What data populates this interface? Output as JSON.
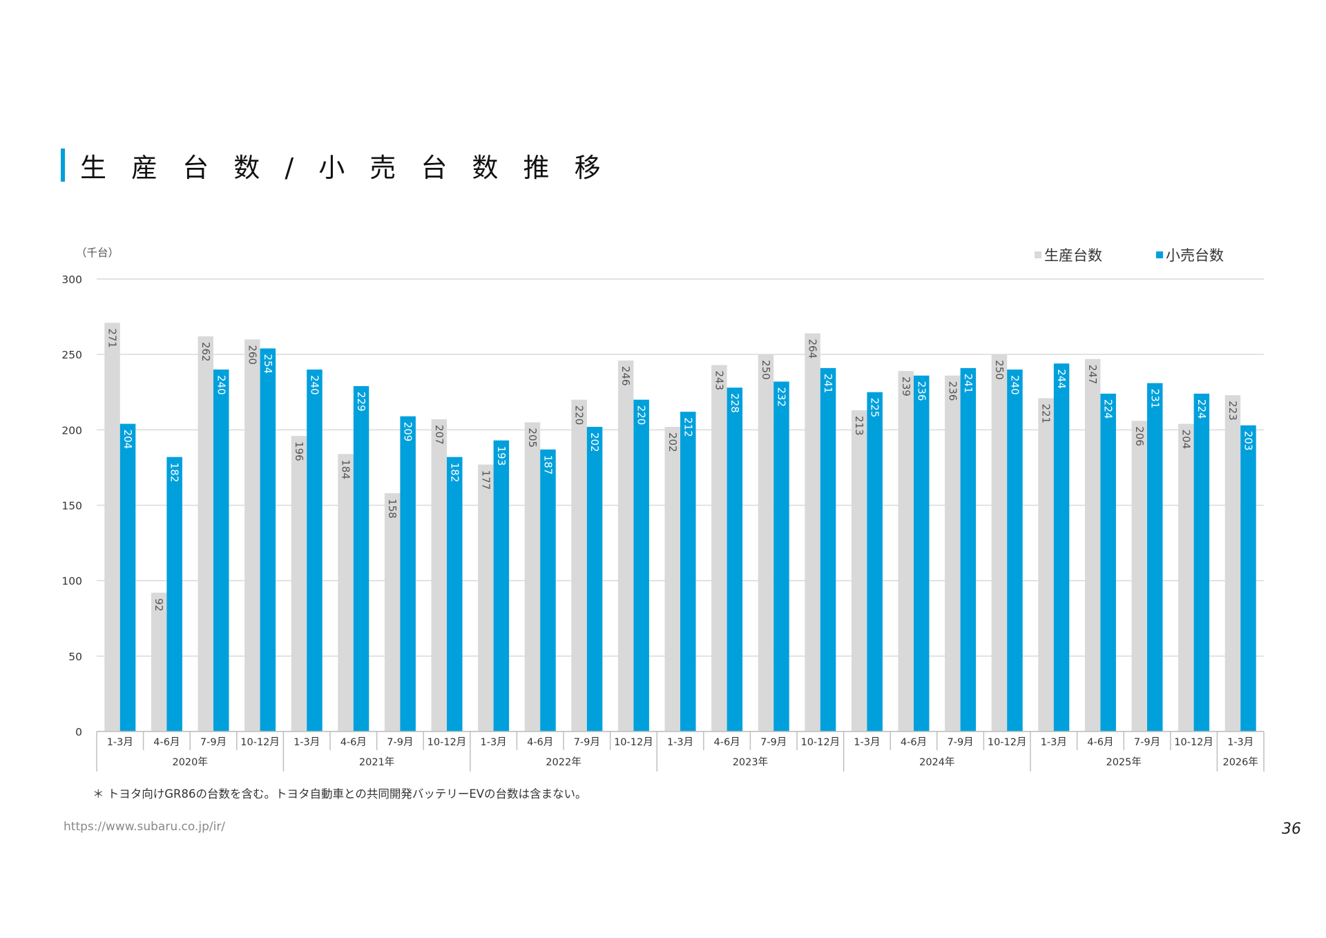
{
  "page": {
    "title": "生 産 台 数 / 小 売 台 数  推 移",
    "footnote": "＊ トヨタ向けGR86の台数を含む。トヨタ自動車との共同開発バッテリーEVの台数は含まない。",
    "url": "https://www.subaru.co.jp/ir/",
    "page_number": "36"
  },
  "colors": {
    "accent": "#009fdb",
    "production": "#d9d9d9",
    "retail": "#00a0dc",
    "grid": "#d9d9d9"
  },
  "chart_data": {
    "type": "bar",
    "unit_label": "（千台）",
    "ylim": [
      0,
      300
    ],
    "yticks": [
      0,
      50,
      100,
      150,
      200,
      250,
      300
    ],
    "grid": true,
    "legend_position": "top-right",
    "years": [
      {
        "label": "2020年",
        "count": 4
      },
      {
        "label": "2021年",
        "count": 4
      },
      {
        "label": "2022年",
        "count": 4
      },
      {
        "label": "2023年",
        "count": 4
      },
      {
        "label": "2024年",
        "count": 4
      },
      {
        "label": "2025年",
        "count": 4
      },
      {
        "label": "2026年",
        "count": 1
      }
    ],
    "categories": [
      "1-3月",
      "4-6月",
      "7-9月",
      "10-12月",
      "1-3月",
      "4-6月",
      "7-9月",
      "10-12月",
      "1-3月",
      "4-6月",
      "7-9月",
      "10-12月",
      "1-3月",
      "4-6月",
      "7-9月",
      "10-12月",
      "1-3月",
      "4-6月",
      "7-9月",
      "10-12月",
      "1-3月",
      "4-6月",
      "7-9月",
      "10-12月",
      "1-3月"
    ],
    "series": [
      {
        "name": "生産台数",
        "values": [
          271,
          92,
          262,
          260,
          196,
          184,
          158,
          207,
          177,
          205,
          220,
          246,
          202,
          243,
          250,
          264,
          213,
          239,
          236,
          250,
          221,
          247,
          206,
          204,
          223
        ]
      },
      {
        "name": "小売台数",
        "values": [
          204,
          182,
          240,
          254,
          240,
          229,
          209,
          182,
          193,
          187,
          202,
          220,
          212,
          228,
          232,
          241,
          225,
          236,
          241,
          240,
          244,
          224,
          231,
          224,
          203
        ]
      }
    ]
  }
}
